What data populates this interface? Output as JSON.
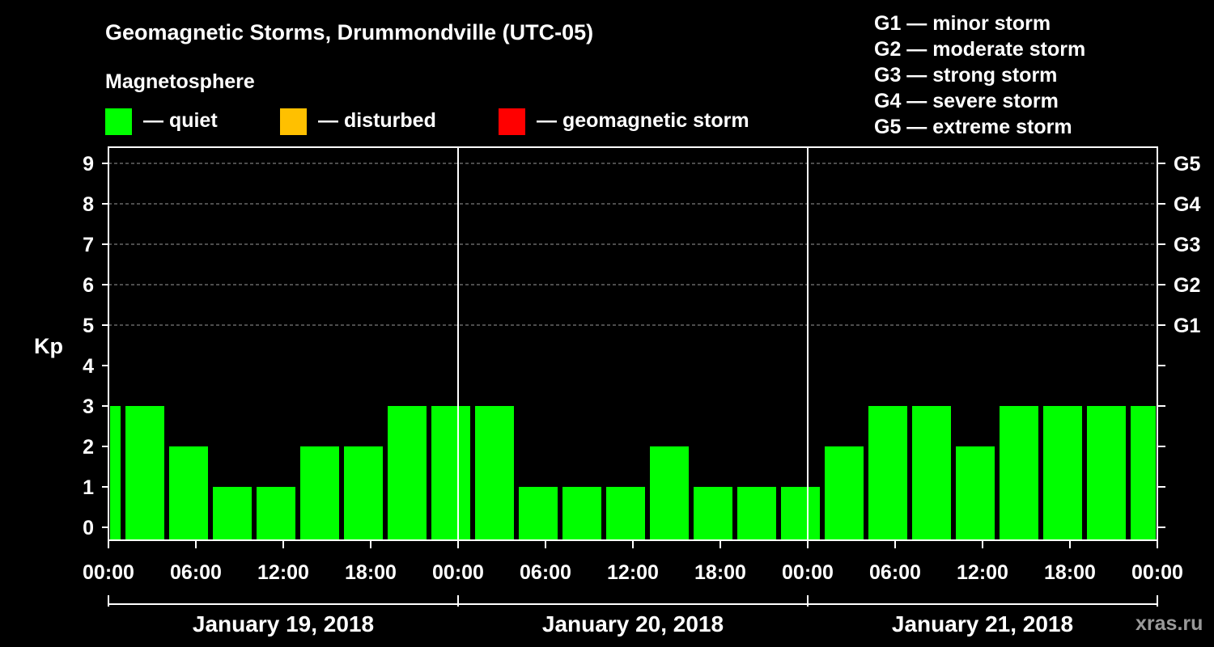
{
  "chart_data": {
    "type": "bar",
    "title": "Geomagnetic Storms, Drummondville (UTC-05)",
    "subtitle": "Magnetosphere",
    "ylabel": "Kp",
    "ylim": [
      0,
      9
    ],
    "y_ticks": [
      "0",
      "1",
      "2",
      "3",
      "4",
      "5",
      "6",
      "7",
      "8",
      "9"
    ],
    "right_ticks": [
      {
        "kp": 5,
        "label": "G1"
      },
      {
        "kp": 6,
        "label": "G2"
      },
      {
        "kp": 7,
        "label": "G3"
      },
      {
        "kp": 8,
        "label": "G4"
      },
      {
        "kp": 9,
        "label": "G5"
      }
    ],
    "x_tick_labels": [
      "00:00",
      "06:00",
      "12:00",
      "18:00",
      "00:00",
      "06:00",
      "12:00",
      "18:00",
      "00:00",
      "06:00",
      "12:00",
      "18:00",
      "00:00"
    ],
    "dates": [
      "January 19, 2018",
      "January 20, 2018",
      "January 21, 2018"
    ],
    "legend": [
      {
        "label": "— quiet",
        "color": "#00ff00"
      },
      {
        "label": "— disturbed",
        "color": "#ffc000"
      },
      {
        "label": "— geomagnetic storm",
        "color": "#ff0000"
      }
    ],
    "storm_scale": [
      "G1 — minor storm",
      "G2 — moderate storm",
      "G3 — strong storm",
      "G4 — severe storm",
      "G5 — extreme storm"
    ],
    "bars": [
      {
        "start_hour": 0,
        "end_hour": 1,
        "kp": 3
      },
      {
        "start_hour": 1,
        "end_hour": 4,
        "kp": 3
      },
      {
        "start_hour": 4,
        "end_hour": 7,
        "kp": 2
      },
      {
        "start_hour": 7,
        "end_hour": 10,
        "kp": 1
      },
      {
        "start_hour": 10,
        "end_hour": 13,
        "kp": 1
      },
      {
        "start_hour": 13,
        "end_hour": 16,
        "kp": 2
      },
      {
        "start_hour": 16,
        "end_hour": 19,
        "kp": 2
      },
      {
        "start_hour": 19,
        "end_hour": 22,
        "kp": 3
      },
      {
        "start_hour": 22,
        "end_hour": 25,
        "kp": 3
      },
      {
        "start_hour": 25,
        "end_hour": 28,
        "kp": 3
      },
      {
        "start_hour": 28,
        "end_hour": 31,
        "kp": 1
      },
      {
        "start_hour": 31,
        "end_hour": 34,
        "kp": 1
      },
      {
        "start_hour": 34,
        "end_hour": 37,
        "kp": 1
      },
      {
        "start_hour": 37,
        "end_hour": 40,
        "kp": 2
      },
      {
        "start_hour": 40,
        "end_hour": 43,
        "kp": 1
      },
      {
        "start_hour": 43,
        "end_hour": 46,
        "kp": 1
      },
      {
        "start_hour": 46,
        "end_hour": 49,
        "kp": 1
      },
      {
        "start_hour": 49,
        "end_hour": 52,
        "kp": 2
      },
      {
        "start_hour": 52,
        "end_hour": 55,
        "kp": 3
      },
      {
        "start_hour": 55,
        "end_hour": 58,
        "kp": 3
      },
      {
        "start_hour": 58,
        "end_hour": 61,
        "kp": 2
      },
      {
        "start_hour": 61,
        "end_hour": 64,
        "kp": 3
      },
      {
        "start_hour": 64,
        "end_hour": 67,
        "kp": 3
      },
      {
        "start_hour": 67,
        "end_hour": 70,
        "kp": 3
      },
      {
        "start_hour": 70,
        "end_hour": 72,
        "kp": 3
      }
    ],
    "quiet_color": "#00ff00",
    "grid": true
  },
  "watermark": "xras.ru"
}
